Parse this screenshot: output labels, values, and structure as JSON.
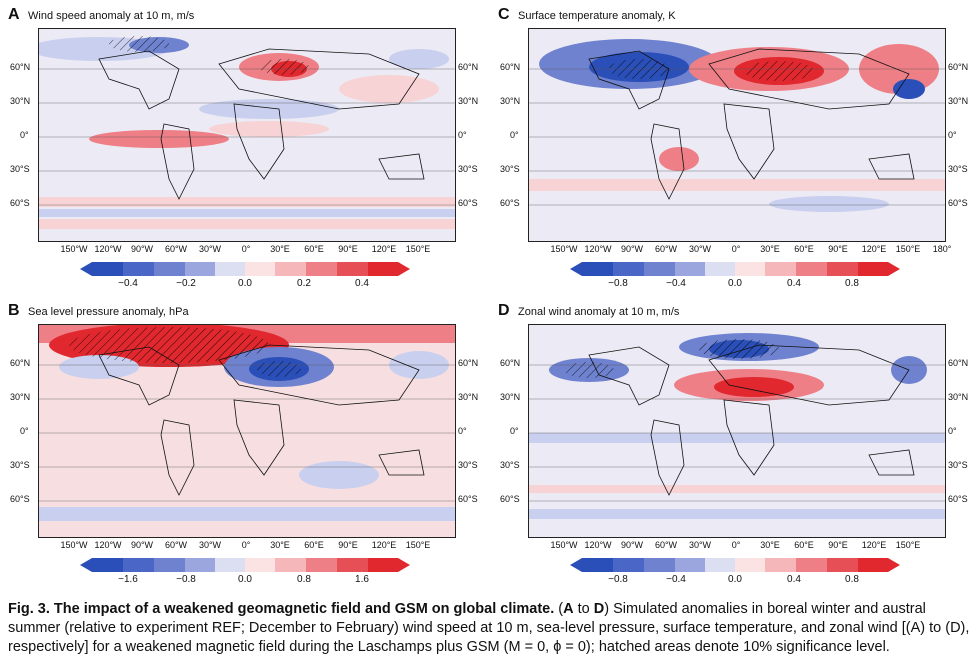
{
  "panels": [
    {
      "id": "A",
      "title": "Wind speed anomaly at 10 m, m/s",
      "ticks": [
        "−0.4",
        "−0.2",
        "0.0",
        "0.2",
        "0.4"
      ],
      "lons": [
        "150°W",
        "120°W",
        "90°W",
        "60°W",
        "30°W",
        "0°",
        "30°E",
        "60°E",
        "90°E",
        "120°E",
        "150°E"
      ]
    },
    {
      "id": "C",
      "title": "Surface temperature anomaly, K",
      "ticks": [
        "−0.8",
        "−0.4",
        "0.0",
        "0.4",
        "0.8"
      ],
      "lons": [
        "150°W",
        "120°W",
        "90°W",
        "60°W",
        "30°W",
        "0°",
        "30°E",
        "60°E",
        "90°E",
        "120°E",
        "150°E",
        "180°"
      ]
    },
    {
      "id": "B",
      "title": "Sea level pressure anomaly, hPa",
      "ticks": [
        "−1.6",
        "−0.8",
        "0.0",
        "0.8",
        "1.6"
      ],
      "lons": [
        "150°W",
        "120°W",
        "90°W",
        "60°W",
        "30°W",
        "0°",
        "30°E",
        "60°E",
        "90°E",
        "120°E",
        "150°E"
      ]
    },
    {
      "id": "D",
      "title": "Zonal wind anomaly at 10 m, m/s",
      "ticks": [
        "−0.8",
        "−0.4",
        "0.0",
        "0.4",
        "0.8"
      ],
      "lons": [
        "150°W",
        "120°W",
        "90°W",
        "60°W",
        "30°W",
        "0°",
        "30°E",
        "60°E",
        "90°E",
        "120°E",
        "150°E"
      ]
    }
  ],
  "lats": [
    "60°N",
    "30°N",
    "0°",
    "30°S",
    "60°S"
  ],
  "colors": {
    "deep_blue": "#2b4fb8",
    "blue": "#6f82cf",
    "light_blue": "#c9cfee",
    "pale": "#ecebf5",
    "pale_red": "#f7d3d5",
    "red": "#ee7f86",
    "deep_red": "#e0282e"
  },
  "caption": {
    "lead": "Fig. 3. The impact of a weakened geomagnetic field and GSM on global climate.",
    "p1": " (",
    "a": "A",
    "to": " to ",
    "d": "D",
    "body": ") Simulated anomalies in boreal winter and austral summer (relative to experiment REF; December to February) wind speed at 10 m, sea-level pressure, surface temperature, and zonal wind [(A) to (D), respectively] for a weakened magnetic field during the Laschamps plus GSM (M = 0, ϕ = 0); hatched areas denote 10% significance level."
  }
}
